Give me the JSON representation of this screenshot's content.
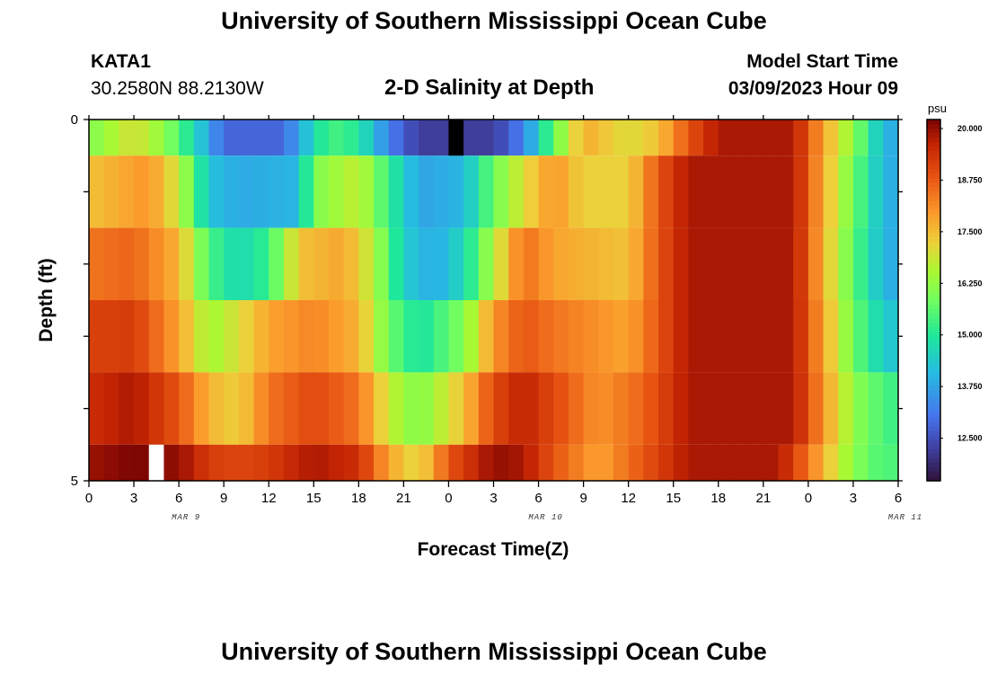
{
  "page": {
    "title_top": "University of Southern Mississippi Ocean Cube",
    "title_bottom": "University of Southern Mississippi Ocean Cube",
    "station_id": "KATA1",
    "station_coords": "30.2580N  88.2130W",
    "model_start_label": "Model Start Time",
    "model_start_value": "03/09/2023 Hour 09"
  },
  "chart_data": {
    "type": "heatmap",
    "title": "2-D Salinity at Depth",
    "xlabel": "Forecast Time(Z)",
    "ylabel": "Depth (ft)",
    "ylim": [
      0,
      5
    ],
    "y_tick_labels": [
      "0",
      "5"
    ],
    "x_tick_labels": [
      "0",
      "3",
      "6",
      "9",
      "12",
      "15",
      "18",
      "21",
      "0",
      "3",
      "6",
      "9",
      "12",
      "15",
      "18",
      "21",
      "0",
      "3",
      "6"
    ],
    "date_labels": [
      {
        "label": "MAR 9",
        "hour_index": 6
      },
      {
        "label": "MAR 10",
        "hour_index": 30
      },
      {
        "label": "MAR 11",
        "hour_index": 54
      }
    ],
    "hours": 54,
    "colorbar": {
      "unit": "psu",
      "min": 11.25,
      "max": 20.0,
      "tick_labels": [
        "20.000",
        "18.750",
        "17.500",
        "16.250",
        "15.000",
        "13.750",
        "12.500"
      ],
      "tick_values": [
        20.0,
        18.75,
        17.5,
        16.25,
        15.0,
        13.75,
        12.5
      ]
    },
    "depth_layers": [
      {
        "depth": 0.25,
        "cells": [
          [
            0,
            15.8
          ],
          [
            3,
            16.8
          ],
          [
            5,
            16.0
          ],
          [
            7,
            14.5
          ],
          [
            9,
            12.6
          ],
          [
            13,
            12.6
          ],
          [
            14,
            13.6
          ],
          [
            16,
            15.2
          ],
          [
            18,
            14.8
          ],
          [
            20,
            13.0
          ],
          [
            22,
            12.0
          ],
          [
            27,
            12.0
          ],
          [
            29,
            13.0
          ],
          [
            31,
            15.5
          ],
          [
            33,
            17.5
          ],
          [
            36,
            16.8
          ],
          [
            38,
            17.2
          ],
          [
            40,
            18.6
          ],
          [
            42,
            19.6
          ],
          [
            47,
            19.6
          ],
          [
            49,
            17.6
          ],
          [
            51,
            16.0
          ],
          [
            53,
            13.8
          ],
          [
            54,
            13.6
          ]
        ]
      },
      {
        "depth": 1.0,
        "cells": [
          [
            0,
            17.2
          ],
          [
            4,
            17.8
          ],
          [
            6,
            16.6
          ],
          [
            8,
            14.0
          ],
          [
            10,
            13.6
          ],
          [
            14,
            13.8
          ],
          [
            15,
            15.8
          ],
          [
            18,
            16.6
          ],
          [
            20,
            15.0
          ],
          [
            22,
            13.5
          ],
          [
            25,
            13.8
          ],
          [
            27,
            15.6
          ],
          [
            29,
            16.8
          ],
          [
            31,
            17.8
          ],
          [
            33,
            17.0
          ],
          [
            36,
            17.0
          ],
          [
            38,
            18.6
          ],
          [
            40,
            19.6
          ],
          [
            47,
            19.6
          ],
          [
            49,
            17.5
          ],
          [
            51,
            15.6
          ],
          [
            53,
            13.8
          ],
          [
            54,
            13.6
          ]
        ]
      },
      {
        "depth": 2.0,
        "cells": [
          [
            0,
            18.2
          ],
          [
            3,
            18.4
          ],
          [
            6,
            17.4
          ],
          [
            8,
            15.2
          ],
          [
            10,
            14.4
          ],
          [
            12,
            15.0
          ],
          [
            14,
            17.2
          ],
          [
            17,
            17.6
          ],
          [
            19,
            16.4
          ],
          [
            21,
            14.2
          ],
          [
            23,
            13.6
          ],
          [
            25,
            14.4
          ],
          [
            27,
            16.4
          ],
          [
            29,
            18.3
          ],
          [
            31,
            17.6
          ],
          [
            36,
            17.2
          ],
          [
            38,
            18.6
          ],
          [
            40,
            19.6
          ],
          [
            47,
            19.6
          ],
          [
            49,
            17.4
          ],
          [
            51,
            15.4
          ],
          [
            53,
            13.8
          ],
          [
            54,
            13.6
          ]
        ]
      },
      {
        "depth": 3.0,
        "cells": [
          [
            0,
            18.9
          ],
          [
            3,
            19.0
          ],
          [
            6,
            17.6
          ],
          [
            8,
            16.2
          ],
          [
            10,
            16.8
          ],
          [
            12,
            17.6
          ],
          [
            15,
            18.0
          ],
          [
            18,
            17.4
          ],
          [
            20,
            15.6
          ],
          [
            22,
            14.6
          ],
          [
            25,
            15.8
          ],
          [
            27,
            17.8
          ],
          [
            29,
            18.6
          ],
          [
            31,
            18.2
          ],
          [
            36,
            17.6
          ],
          [
            38,
            18.6
          ],
          [
            40,
            19.6
          ],
          [
            47,
            19.6
          ],
          [
            49,
            17.6
          ],
          [
            51,
            15.6
          ],
          [
            53,
            14.2
          ],
          [
            54,
            14.0
          ]
        ]
      },
      {
        "depth": 4.0,
        "cells": [
          [
            0,
            19.2
          ],
          [
            3,
            19.6
          ],
          [
            6,
            18.6
          ],
          [
            8,
            17.4
          ],
          [
            10,
            17.0
          ],
          [
            12,
            18.2
          ],
          [
            15,
            18.8
          ],
          [
            18,
            18.2
          ],
          [
            20,
            16.6
          ],
          [
            22,
            15.8
          ],
          [
            25,
            17.2
          ],
          [
            27,
            18.8
          ],
          [
            29,
            19.4
          ],
          [
            31,
            18.8
          ],
          [
            34,
            17.8
          ],
          [
            37,
            18.4
          ],
          [
            40,
            19.6
          ],
          [
            47,
            19.6
          ],
          [
            49,
            17.8
          ],
          [
            51,
            16.0
          ],
          [
            53,
            15.2
          ],
          [
            54,
            15.0
          ]
        ]
      },
      {
        "depth": 4.75,
        "cells": [
          [
            0,
            19.7
          ],
          [
            3,
            20.0
          ],
          [
            6,
            19.8
          ],
          [
            8,
            19.0
          ],
          [
            10,
            18.8
          ],
          [
            12,
            19.0
          ],
          [
            15,
            19.6
          ],
          [
            18,
            19.2
          ],
          [
            20,
            17.6
          ],
          [
            22,
            16.8
          ],
          [
            24,
            18.6
          ],
          [
            27,
            19.8
          ],
          [
            29,
            19.6
          ],
          [
            31,
            18.6
          ],
          [
            34,
            17.6
          ],
          [
            37,
            18.6
          ],
          [
            40,
            19.6
          ],
          [
            46,
            19.6
          ],
          [
            48,
            18.2
          ],
          [
            50,
            16.6
          ],
          [
            52,
            15.4
          ],
          [
            54,
            15.2
          ]
        ]
      }
    ],
    "markers": [
      {
        "color": "#000000",
        "hour": 24,
        "layer": 0
      },
      {
        "color": "#ffffff",
        "hour": 4,
        "layer": 5
      }
    ]
  }
}
